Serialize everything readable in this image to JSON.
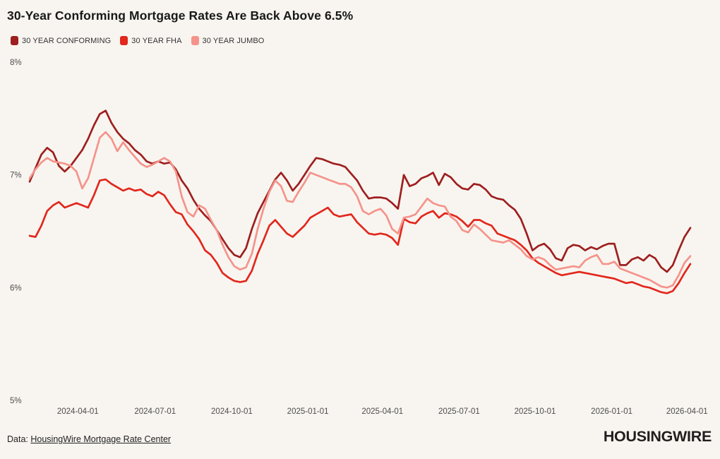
{
  "page": {
    "background": "#f8f5f0"
  },
  "header": {
    "title": "30-Year Conforming Mortgage Rates Are Back Above 6.5%"
  },
  "footer": {
    "data_prefix": "Data: ",
    "source_link": "HousingWire Mortgage Rate Center",
    "logo_text": "HOUSINGWIRE"
  },
  "chart_data": {
    "type": "line",
    "title": "30-Year Conforming Mortgage Rates Are Back Above 6.5%",
    "xlabel": "",
    "ylabel": "",
    "ylim": [
      5,
      8
    ],
    "grid": false,
    "legend_position": "top-left",
    "y_ticks": [
      {
        "value": 8,
        "label": "8%"
      },
      {
        "value": 7,
        "label": "7%"
      },
      {
        "value": 6,
        "label": "6%"
      },
      {
        "value": 5,
        "label": "5%"
      }
    ],
    "x_ticks": [
      {
        "label": "2024-04-01",
        "pos": 0.073
      },
      {
        "label": "2024-07-01",
        "pos": 0.19
      },
      {
        "label": "2024-10-01",
        "pos": 0.306
      },
      {
        "label": "2025-01-01",
        "pos": 0.421
      },
      {
        "label": "2025-04-01",
        "pos": 0.534
      },
      {
        "label": "2025-07-01",
        "pos": 0.65
      },
      {
        "label": "2025-10-01",
        "pos": 0.765
      },
      {
        "label": "2026-01-01",
        "pos": 0.881
      },
      {
        "label": "2026-04-01",
        "pos": 0.995
      }
    ],
    "series": [
      {
        "name": "30 YEAR CONFORMING",
        "color": "#9e1f1f",
        "values": [
          6.94,
          7.06,
          7.18,
          7.24,
          7.2,
          7.08,
          7.03,
          7.08,
          7.15,
          7.22,
          7.32,
          7.44,
          7.54,
          7.57,
          7.46,
          7.38,
          7.32,
          7.28,
          7.22,
          7.18,
          7.12,
          7.1,
          7.12,
          7.1,
          7.11,
          7.05,
          6.95,
          6.88,
          6.78,
          6.7,
          6.64,
          6.59,
          6.51,
          6.43,
          6.35,
          6.29,
          6.27,
          6.35,
          6.52,
          6.66,
          6.76,
          6.86,
          6.96,
          7.02,
          6.95,
          6.86,
          6.92,
          7.0,
          7.08,
          7.15,
          7.14,
          7.12,
          7.1,
          7.09,
          7.07,
          7.01,
          6.95,
          6.86,
          6.79,
          6.8,
          6.8,
          6.79,
          6.75,
          6.7,
          7.0,
          6.9,
          6.92,
          6.97,
          6.99,
          7.02,
          6.91,
          7.01,
          6.98,
          6.92,
          6.88,
          6.87,
          6.92,
          6.91,
          6.87,
          6.81,
          6.79,
          6.78,
          6.73,
          6.69,
          6.61,
          6.48,
          6.33,
          6.37,
          6.39,
          6.34,
          6.26,
          6.24,
          6.35,
          6.38,
          6.37,
          6.33,
          6.36,
          6.34,
          6.37,
          6.39,
          6.39,
          6.2,
          6.2,
          6.25,
          6.27,
          6.24,
          6.29,
          6.26,
          6.18,
          6.14,
          6.2,
          6.33,
          6.45,
          6.53
        ]
      },
      {
        "name": "30 YEAR FHA",
        "color": "#e2271c",
        "values": [
          6.46,
          6.45,
          6.55,
          6.68,
          6.73,
          6.76,
          6.71,
          6.73,
          6.75,
          6.73,
          6.71,
          6.82,
          6.95,
          6.96,
          6.92,
          6.89,
          6.86,
          6.88,
          6.86,
          6.87,
          6.83,
          6.81,
          6.85,
          6.82,
          6.74,
          6.67,
          6.65,
          6.56,
          6.5,
          6.43,
          6.33,
          6.29,
          6.22,
          6.13,
          6.09,
          6.06,
          6.05,
          6.06,
          6.15,
          6.3,
          6.42,
          6.55,
          6.6,
          6.54,
          6.48,
          6.45,
          6.5,
          6.55,
          6.62,
          6.65,
          6.68,
          6.71,
          6.65,
          6.63,
          6.64,
          6.65,
          6.58,
          6.53,
          6.48,
          6.47,
          6.48,
          6.47,
          6.44,
          6.38,
          6.61,
          6.58,
          6.57,
          6.63,
          6.66,
          6.68,
          6.62,
          6.66,
          6.65,
          6.63,
          6.59,
          6.54,
          6.6,
          6.6,
          6.57,
          6.55,
          6.48,
          6.46,
          6.44,
          6.42,
          6.38,
          6.33,
          6.26,
          6.22,
          6.19,
          6.16,
          6.13,
          6.11,
          6.12,
          6.13,
          6.14,
          6.13,
          6.12,
          6.11,
          6.1,
          6.09,
          6.08,
          6.06,
          6.04,
          6.05,
          6.03,
          6.01,
          6.0,
          5.98,
          5.96,
          5.95,
          5.97,
          6.04,
          6.13,
          6.21
        ]
      },
      {
        "name": "30 YEAR JUMBO",
        "color": "#f5938b",
        "values": [
          6.97,
          7.05,
          7.11,
          7.15,
          7.12,
          7.11,
          7.1,
          7.08,
          7.03,
          6.88,
          6.97,
          7.15,
          7.33,
          7.38,
          7.32,
          7.21,
          7.29,
          7.22,
          7.16,
          7.1,
          7.07,
          7.09,
          7.12,
          7.15,
          7.12,
          7.03,
          6.81,
          6.67,
          6.63,
          6.73,
          6.7,
          6.6,
          6.51,
          6.38,
          6.27,
          6.19,
          6.16,
          6.18,
          6.3,
          6.52,
          6.7,
          6.85,
          6.95,
          6.9,
          6.77,
          6.76,
          6.85,
          6.93,
          7.02,
          7.0,
          6.98,
          6.96,
          6.94,
          6.92,
          6.92,
          6.89,
          6.81,
          6.68,
          6.65,
          6.68,
          6.7,
          6.64,
          6.52,
          6.48,
          6.62,
          6.63,
          6.65,
          6.72,
          6.79,
          6.75,
          6.73,
          6.72,
          6.63,
          6.59,
          6.51,
          6.49,
          6.56,
          6.52,
          6.47,
          6.42,
          6.41,
          6.4,
          6.42,
          6.38,
          6.34,
          6.28,
          6.25,
          6.27,
          6.25,
          6.2,
          6.16,
          6.17,
          6.18,
          6.19,
          6.18,
          6.24,
          6.27,
          6.29,
          6.21,
          6.21,
          6.23,
          6.17,
          6.15,
          6.13,
          6.11,
          6.09,
          6.07,
          6.04,
          6.01,
          6.0,
          6.02,
          6.11,
          6.22,
          6.28
        ]
      }
    ]
  }
}
